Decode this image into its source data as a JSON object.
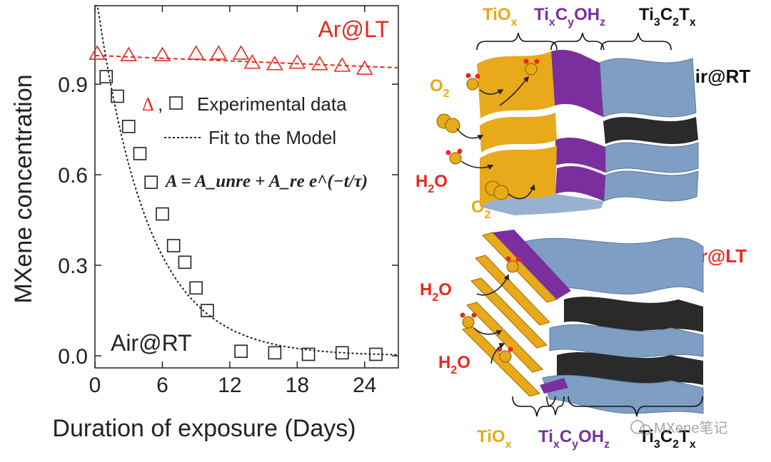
{
  "chart_data": {
    "type": "scatter",
    "xlabel": "Duration of exposure (Days)",
    "ylabel": "MXene concentration",
    "xlim": [
      0,
      27
    ],
    "ylim": [
      -0.04,
      1.16
    ],
    "xticks": [
      0,
      6,
      12,
      18,
      24
    ],
    "yticks": [
      0.0,
      0.3,
      0.6,
      0.9
    ],
    "x_tick_labels": [
      "0",
      "6",
      "12",
      "18",
      "24"
    ],
    "y_tick_labels": [
      "0.0",
      "0.3",
      "0.6",
      "0.9"
    ],
    "series": [
      {
        "name": "Ar@LT",
        "marker": "triangle",
        "color": "#e8291c",
        "x": [
          0.2,
          3,
          6,
          9,
          11,
          13,
          14,
          16,
          18,
          20,
          22,
          24
        ],
        "y": [
          1.0,
          0.995,
          0.995,
          1.0,
          1.0,
          1.0,
          0.97,
          0.965,
          0.97,
          0.965,
          0.96,
          0.95
        ]
      },
      {
        "name": "Air@RT",
        "marker": "square",
        "color": "#222222",
        "x": [
          1,
          2,
          3,
          4,
          5,
          6,
          7,
          8,
          9,
          10,
          13,
          16,
          19,
          22,
          25
        ],
        "y": [
          0.925,
          0.86,
          0.76,
          0.67,
          0.575,
          0.47,
          0.365,
          0.31,
          0.225,
          0.15,
          0.015,
          0.01,
          0.005,
          0.01,
          0.005
        ]
      }
    ],
    "fits": [
      {
        "name": "Ar@LT fit",
        "style": "dashed",
        "color": "#e8291c",
        "intercept": 0.995,
        "slope": -0.0015
      },
      {
        "name": "Air@RT fit",
        "style": "dotted",
        "color": "#222222",
        "a_unre": 0.0,
        "a_re": 1.22,
        "tau": 4.6
      }
    ],
    "labels": {
      "arlt": "Ar@LT",
      "airrt": "Air@RT",
      "legend_markers_tri": "Δ",
      "legend_markers_sep": ",",
      "legend_exp": "Experimental data",
      "legend_fit": "Fit to the Model",
      "equation": "A = A_unre + A_re e^(−t/τ)"
    }
  },
  "schematic": {
    "top": {
      "layer_labels": [
        "TiOx",
        "TixCyOHz",
        "Ti3C2Tx"
      ],
      "condition": "Air@RT",
      "species": [
        "O2",
        "H2O",
        "O2"
      ]
    },
    "bottom": {
      "layer_labels": [
        "TiOx",
        "TixCyOHz",
        "Ti3C2Tx"
      ],
      "condition": "Ar@LT",
      "species": [
        "H2O",
        "H2O"
      ]
    },
    "colors": {
      "tiox": "#e8a91a",
      "tixcyohz": "#7b2f9e",
      "ti3c2tx": "#7e9ec4",
      "dark_layer": "#2a2a2a",
      "red_label": "#e8291c"
    }
  },
  "watermark": "MXene笔记"
}
